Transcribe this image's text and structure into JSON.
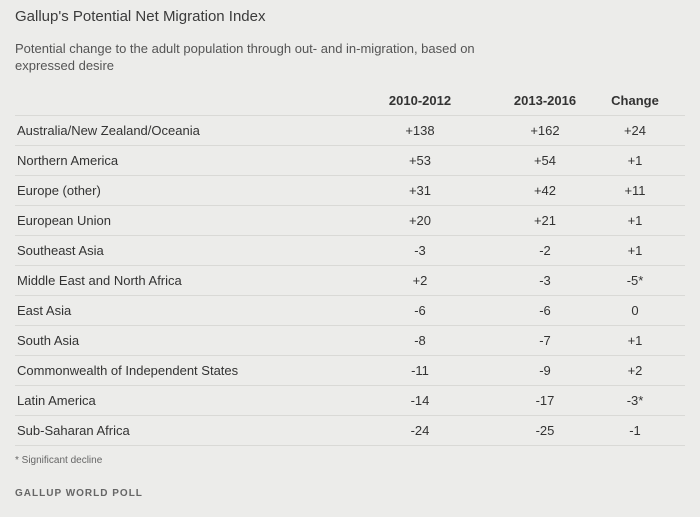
{
  "chart_data": {
    "type": "table",
    "title": "Gallup's Potential Net Migration Index",
    "subtitle": "Potential change to the adult population through out- and in-migration, based on expressed desire",
    "columns": [
      "",
      "2010-2012",
      "2013-2016",
      "Change"
    ],
    "rows": [
      {
        "region": "Australia/New Zealand/Oceania",
        "v2010_2012": "+138",
        "v2013_2016": "+162",
        "change": "+24"
      },
      {
        "region": "Northern America",
        "v2010_2012": "+53",
        "v2013_2016": "+54",
        "change": "+1"
      },
      {
        "region": "Europe (other)",
        "v2010_2012": "+31",
        "v2013_2016": "+42",
        "change": "+11"
      },
      {
        "region": "European Union",
        "v2010_2012": "+20",
        "v2013_2016": "+21",
        "change": "+1"
      },
      {
        "region": "Southeast Asia",
        "v2010_2012": "-3",
        "v2013_2016": "-2",
        "change": "+1"
      },
      {
        "region": "Middle East and North Africa",
        "v2010_2012": "+2",
        "v2013_2016": "-3",
        "change": "-5*"
      },
      {
        "region": "East Asia",
        "v2010_2012": "-6",
        "v2013_2016": "-6",
        "change": "0"
      },
      {
        "region": "South Asia",
        "v2010_2012": "-8",
        "v2013_2016": "-7",
        "change": "+1"
      },
      {
        "region": "Commonwealth of Independent States",
        "v2010_2012": "-11",
        "v2013_2016": "-9",
        "change": "+2"
      },
      {
        "region": "Latin America",
        "v2010_2012": "-14",
        "v2013_2016": "-17",
        "change": "-3*"
      },
      {
        "region": "Sub-Saharan Africa",
        "v2010_2012": "-24",
        "v2013_2016": "-25",
        "change": "-1"
      }
    ],
    "note": "* Significant decline",
    "source": "GALLUP WORLD POLL"
  },
  "colors": {
    "background": "#ececea",
    "text": "#333333",
    "rule": "#d9d9d6"
  }
}
